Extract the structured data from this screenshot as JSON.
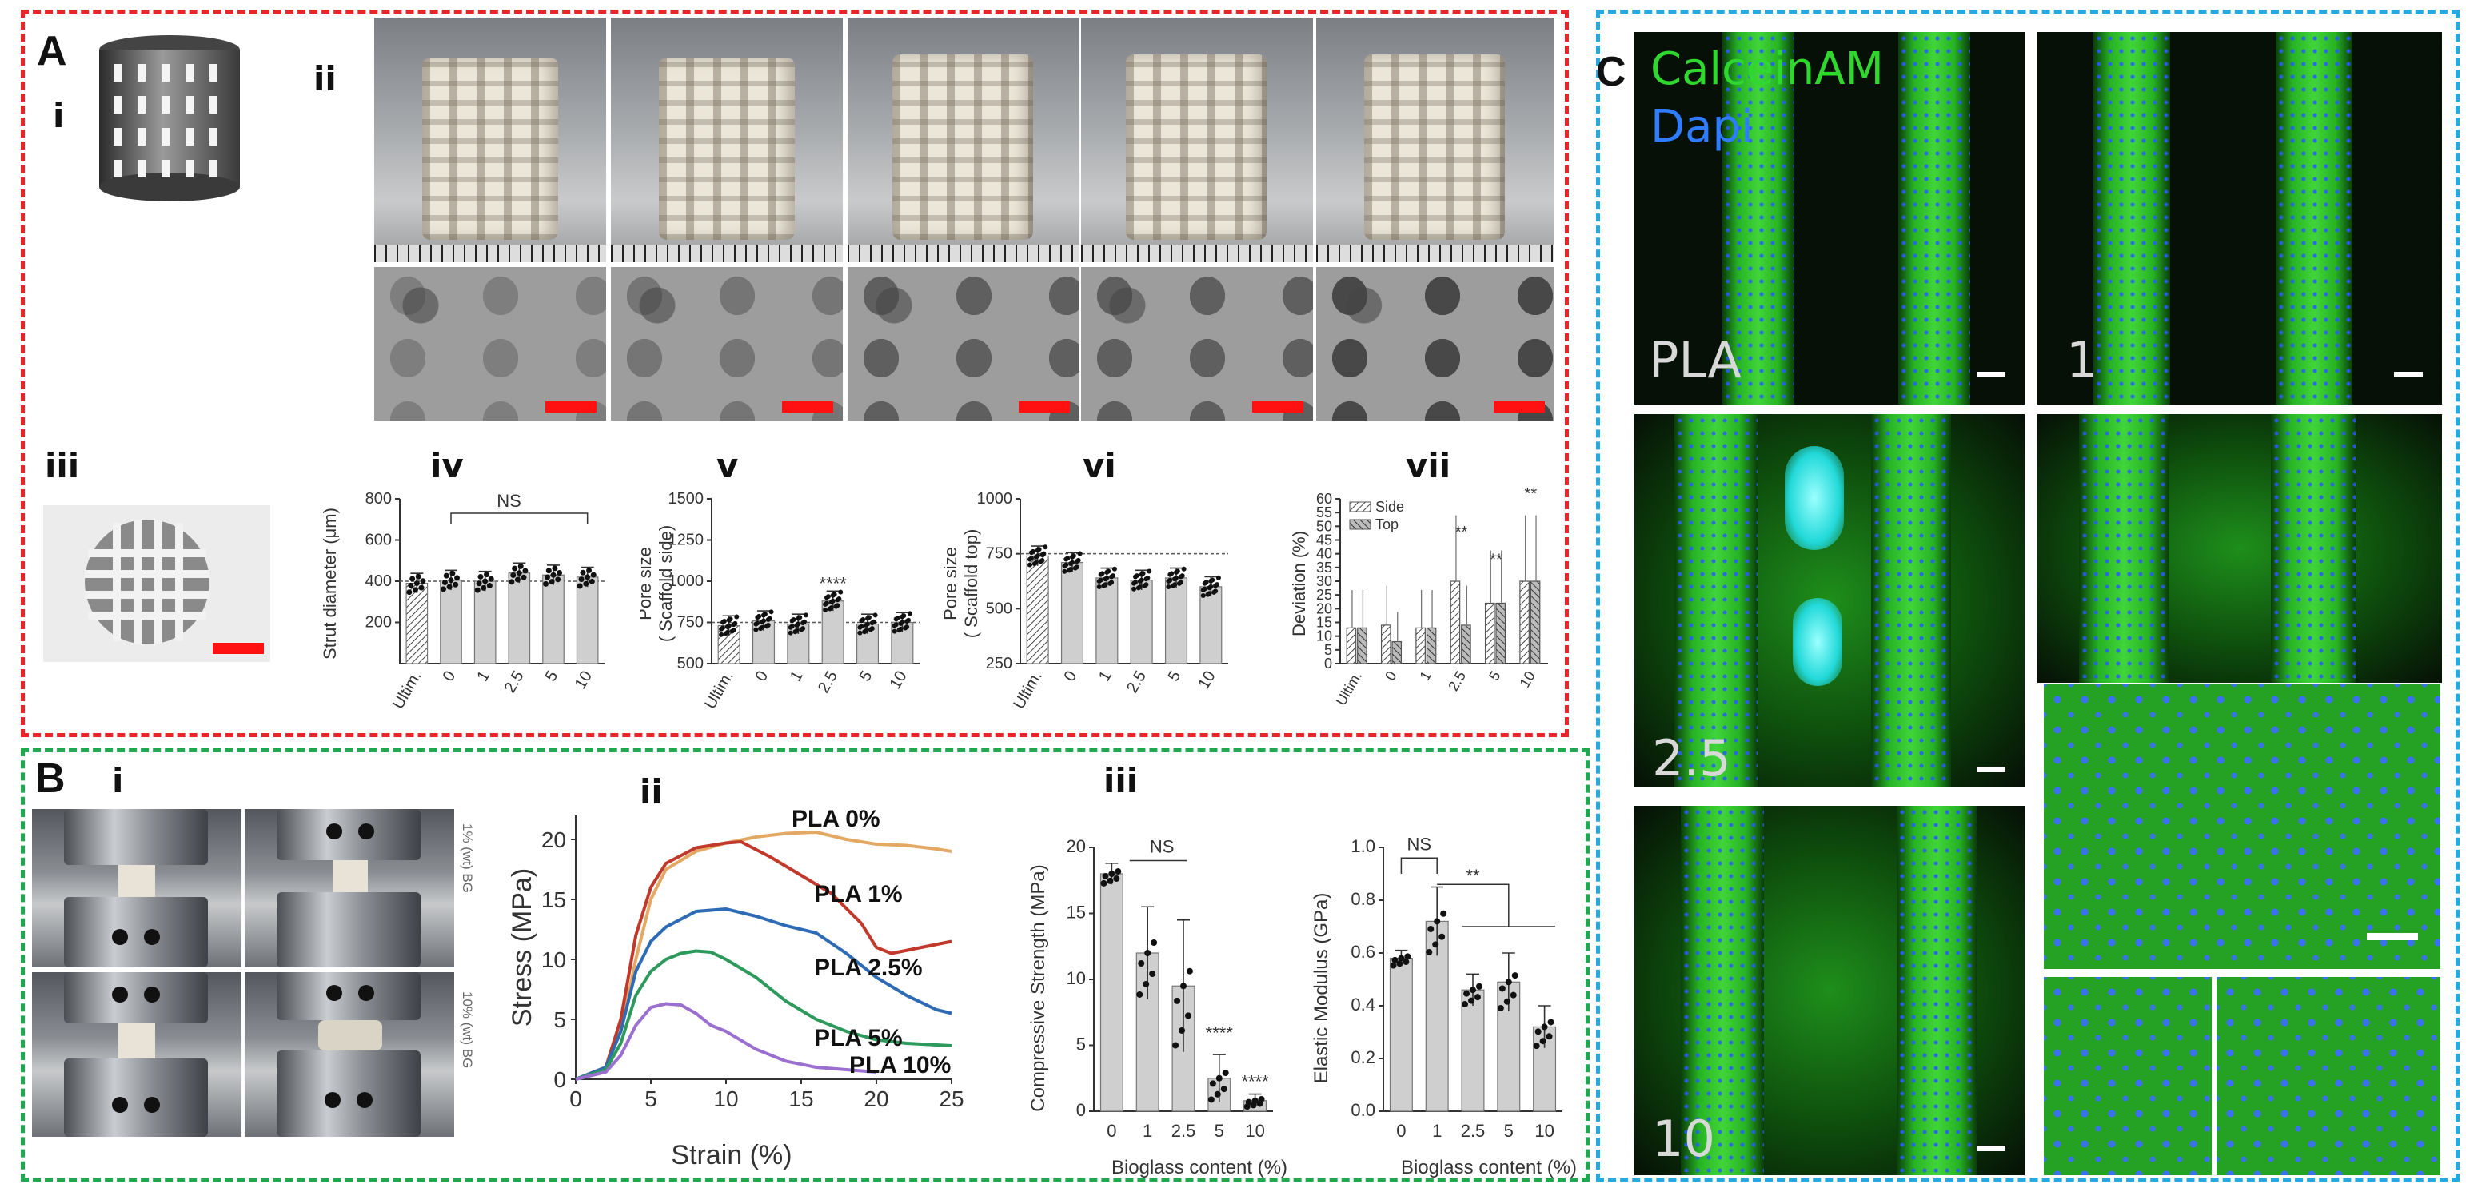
{
  "panels": {
    "A": {
      "label": "A",
      "sub": {
        "i": "i",
        "ii": "ii",
        "iii": "iii",
        "iv": "iv",
        "v": "v",
        "vi": "vi",
        "vii": "vii"
      },
      "ns_label": "NS",
      "iv": {
        "ylabel": "Strut diameter (μm)",
        "yticks": [
          "200",
          "400",
          "600",
          "800"
        ],
        "categories": [
          "Ultim.",
          "0",
          "1",
          "2.5",
          "5",
          "10"
        ]
      },
      "v": {
        "ylabel": "Pore size\n( Scaffold side)",
        "ylabel1": "Pore size",
        "ylabel2": "( Scaffold side)",
        "yticks": [
          "500",
          "750",
          "1000",
          "1250",
          "1500"
        ],
        "categories": [
          "Ultim.",
          "0",
          "1",
          "2.5",
          "5",
          "10"
        ],
        "sig": "****"
      },
      "vi": {
        "ylabel1": "Pore size",
        "ylabel2": "( Scaffold top)",
        "yticks": [
          "250",
          "500",
          "750",
          "1000"
        ],
        "categories": [
          "Ultim.",
          "0",
          "1",
          "2.5",
          "5",
          "10"
        ]
      },
      "vii": {
        "ylabel": "Deviation (%)",
        "yticks": [
          "0",
          "5",
          "10",
          "15",
          "20",
          "25",
          "30",
          "35",
          "40",
          "45",
          "50",
          "55",
          "60"
        ],
        "categories": [
          "Ultim.",
          "0",
          "1",
          "2.5",
          "5",
          "10"
        ],
        "legend_side": "Side",
        "legend_top": "Top",
        "sig": "**"
      }
    },
    "B": {
      "label": "B",
      "sub": {
        "i": "i",
        "ii": "ii",
        "iii": "iii"
      },
      "photo_labels": [
        "1% (wt) BG",
        "10% (wt) BG"
      ],
      "ii": {
        "xlabel": "Strain (%)",
        "ylabel": "Stress (MPa)",
        "xticks": [
          "0",
          "5",
          "10",
          "15",
          "20",
          "25"
        ],
        "yticks": [
          "0",
          "5",
          "10",
          "15",
          "20"
        ],
        "series_labels": [
          "PLA 0%",
          "PLA 1%",
          "PLA 2.5%",
          "PLA 5%",
          "PLA 10%"
        ]
      },
      "iii_left": {
        "ylabel": "Compressive Strength (MPa)",
        "xlabel": "Bioglass content (%)",
        "yticks": [
          "0",
          "5",
          "10",
          "15",
          "20"
        ],
        "categories": [
          "0",
          "1",
          "2.5",
          "5",
          "10"
        ],
        "ns": "NS",
        "sig": "****"
      },
      "iii_right": {
        "ylabel": "Elastic Modulus (GPa)",
        "xlabel": "Bioglass content (%)",
        "yticks": [
          "0.0",
          "0.2",
          "0.4",
          "0.6",
          "0.8",
          "1.0"
        ],
        "categories": [
          "0",
          "1",
          "2.5",
          "5",
          "10"
        ],
        "ns": "NS",
        "sig": "**"
      }
    },
    "C": {
      "label": "C",
      "stain1": "CalceinAM",
      "stain2": "Dapi",
      "image_labels": [
        "PLA",
        "1",
        "2.5",
        "10"
      ]
    }
  },
  "chart_data": [
    {
      "type": "bar",
      "panel": "A-iv",
      "categories": [
        "Ultim.",
        "0",
        "1",
        "2.5",
        "5",
        "10"
      ],
      "values": [
        390,
        405,
        400,
        440,
        430,
        420
      ],
      "ylabel": "Strut diameter (μm)",
      "ylim": [
        0,
        800
      ],
      "reference_line": 400,
      "annotation": "NS"
    },
    {
      "type": "bar",
      "panel": "A-v",
      "categories": [
        "Ultim.",
        "0",
        "1",
        "2.5",
        "5",
        "10"
      ],
      "values": [
        730,
        760,
        740,
        880,
        740,
        750
      ],
      "ylabel": "Pore size ( Scaffold side)",
      "ylim": [
        500,
        1500
      ],
      "reference_line": 750,
      "annotation": "****"
    },
    {
      "type": "bar",
      "panel": "A-vi",
      "categories": [
        "Ultim.",
        "0",
        "1",
        "2.5",
        "5",
        "10"
      ],
      "values": [
        740,
        710,
        640,
        630,
        640,
        600
      ],
      "ylabel": "Pore size ( Scaffold top)",
      "ylim": [
        250,
        1000
      ],
      "reference_line": 750
    },
    {
      "type": "bar",
      "panel": "A-vii",
      "categories": [
        "Ultim.",
        "0",
        "1",
        "2.5",
        "5",
        "10"
      ],
      "series": [
        {
          "name": "Side",
          "values": [
            13,
            14,
            13,
            30,
            22,
            30
          ]
        },
        {
          "name": "Top",
          "values": [
            13,
            8,
            13,
            14,
            22,
            30
          ]
        }
      ],
      "ylabel": "Deviation (%)",
      "ylim": [
        0,
        60
      ],
      "annotation": "**"
    },
    {
      "type": "line",
      "panel": "B-ii",
      "xlabel": "Strain (%)",
      "ylabel": "Stress (MPa)",
      "xlim": [
        0,
        25
      ],
      "ylim": [
        0,
        22
      ],
      "series": [
        {
          "name": "PLA 0%",
          "color": "#e3a864",
          "x": [
            0,
            2,
            3,
            4,
            5,
            6,
            8,
            10,
            12,
            14,
            16,
            18,
            20,
            22,
            24,
            25
          ],
          "y": [
            0,
            1,
            4,
            10,
            15,
            17.5,
            19,
            19.7,
            20.2,
            20.5,
            20.6,
            20,
            19.6,
            19.5,
            19.2,
            19
          ]
        },
        {
          "name": "PLA 1%",
          "color": "#c0392b",
          "x": [
            0,
            2,
            3,
            4,
            5,
            6,
            8,
            10,
            11,
            13,
            15,
            17,
            19,
            20,
            21,
            23,
            25
          ],
          "y": [
            0,
            1,
            5,
            12,
            16,
            18,
            19.3,
            19.7,
            19.8,
            18.5,
            17,
            15.5,
            13,
            11,
            10.5,
            11,
            11.5
          ]
        },
        {
          "name": "PLA 2.5%",
          "color": "#2e6bb5",
          "x": [
            0,
            2,
            3,
            4,
            5,
            6,
            8,
            10,
            12,
            14,
            16,
            18,
            20,
            22,
            24,
            25
          ],
          "y": [
            0,
            1,
            4,
            9,
            11.5,
            12.7,
            14,
            14.2,
            13.6,
            12.8,
            12.2,
            10.5,
            8.5,
            7,
            5.8,
            5.5
          ]
        },
        {
          "name": "PLA 5%",
          "color": "#2d9a5c",
          "x": [
            0,
            2,
            3,
            4,
            5,
            6,
            7,
            8,
            9,
            10,
            12,
            14,
            16,
            18,
            20,
            22,
            25
          ],
          "y": [
            0,
            0.8,
            3,
            7,
            9,
            10,
            10.5,
            10.7,
            10.6,
            10,
            8.5,
            6.5,
            5,
            4,
            3.3,
            3,
            2.8
          ]
        },
        {
          "name": "PLA 10%",
          "color": "#9b6fd0",
          "x": [
            0,
            2,
            3,
            4,
            5,
            6,
            7,
            8,
            9,
            10,
            12,
            14,
            16,
            18,
            20
          ],
          "y": [
            0,
            0.6,
            2,
            4.5,
            6,
            6.3,
            6.2,
            5.5,
            4.5,
            4,
            2.5,
            1.5,
            1,
            0.8,
            0.6
          ]
        }
      ]
    },
    {
      "type": "bar",
      "panel": "B-iii-left",
      "categories": [
        "0",
        "1",
        "2.5",
        "5",
        "10"
      ],
      "values": [
        18,
        12,
        9.5,
        2.5,
        0.8
      ],
      "errors": [
        0.8,
        3.5,
        5,
        1.8,
        0.5
      ],
      "ylabel": "Compressive Strength (MPa)",
      "xlabel": "Bioglass content (%)",
      "ylim": [
        0,
        20
      ]
    },
    {
      "type": "bar",
      "panel": "B-iii-right",
      "categories": [
        "0",
        "1",
        "2.5",
        "5",
        "10"
      ],
      "values": [
        0.58,
        0.72,
        0.46,
        0.49,
        0.32
      ],
      "errors": [
        0.03,
        0.13,
        0.06,
        0.11,
        0.08
      ],
      "ylabel": "Elastic Modulus (GPa)",
      "xlabel": "Bioglass content (%)",
      "ylim": [
        0,
        1.0
      ]
    }
  ]
}
